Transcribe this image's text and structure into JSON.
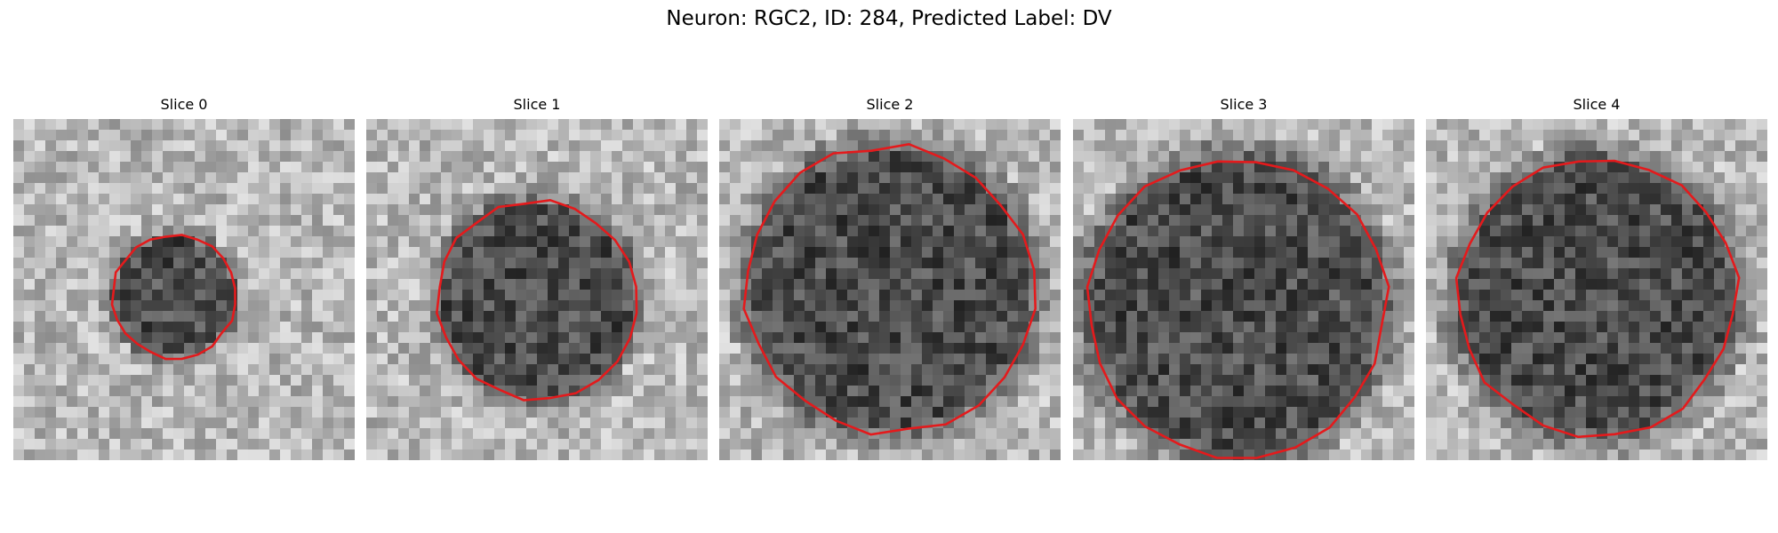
{
  "figure": {
    "title": "Neuron: RGC2, ID: 284, Predicted Label: DV",
    "outline_color": "#e41a1c",
    "image_colormap": "grayscale"
  },
  "panels": [
    {
      "title": "Slice 0",
      "outline_scale": 0.36,
      "outline_offset": [
        -0.03,
        0.02
      ]
    },
    {
      "title": "Slice 1",
      "outline_scale": 0.58,
      "outline_offset": [
        0.0,
        0.03
      ]
    },
    {
      "title": "Slice 2",
      "outline_scale": 0.84,
      "outline_offset": [
        0.0,
        0.0
      ]
    },
    {
      "title": "Slice 3",
      "outline_scale": 0.88,
      "outline_offset": [
        -0.02,
        0.05
      ]
    },
    {
      "title": "Slice 4",
      "outline_scale": 0.82,
      "outline_offset": [
        0.0,
        0.02
      ]
    }
  ]
}
